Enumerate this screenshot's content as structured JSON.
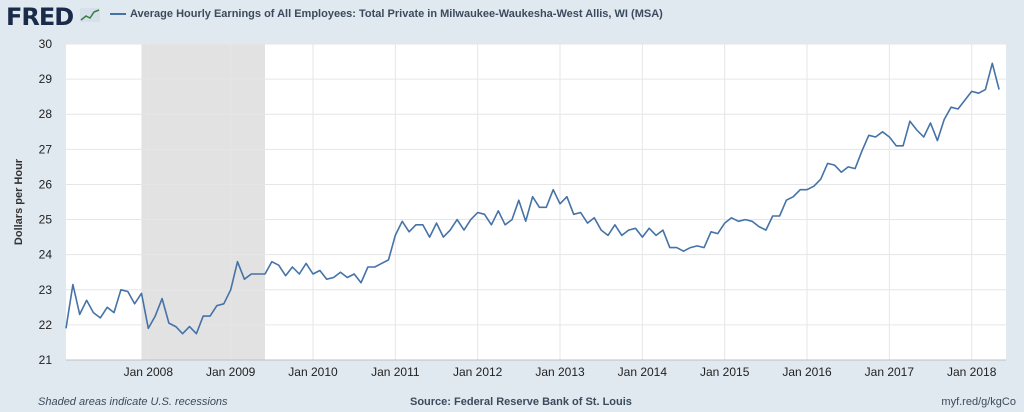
{
  "header": {
    "logo": "FRED",
    "legend": "Average Hourly Earnings of All Employees: Total Private in Milwaukee-Waukesha-West Allis, WI (MSA)"
  },
  "footer": {
    "recession_note": "Shaded areas indicate U.S. recessions",
    "source": "Source: Federal Reserve Bank of St. Louis",
    "url": "myf.red/g/kgCo"
  },
  "colors": {
    "line": "#4572a7",
    "recession": "#e2e2e2",
    "background": "#e1e9f0",
    "plot_bg": "#ffffff"
  },
  "chart_data": {
    "type": "line",
    "ylabel": "Dollars per Hour",
    "ylim": [
      21,
      30
    ],
    "yticks": [
      21,
      22,
      23,
      24,
      25,
      26,
      27,
      28,
      29,
      30
    ],
    "xlim": [
      "2007-01",
      "2018-06"
    ],
    "xticks": [
      "Jan 2008",
      "Jan 2009",
      "Jan 2010",
      "Jan 2011",
      "Jan 2012",
      "Jan 2013",
      "Jan 2014",
      "Jan 2015",
      "Jan 2016",
      "Jan 2017",
      "Jan 2018"
    ],
    "grid": true,
    "recessions": [
      [
        "2007-12",
        "2009-06"
      ]
    ],
    "series": [
      {
        "name": "Average Hourly Earnings of All Employees: Total Private in Milwaukee-Waukesha-West Allis, WI (MSA)",
        "start": "2007-01",
        "values": [
          21.9,
          23.15,
          22.3,
          22.7,
          22.35,
          22.2,
          22.5,
          22.35,
          23.0,
          22.95,
          22.6,
          22.9,
          21.9,
          22.25,
          22.75,
          22.05,
          21.95,
          21.75,
          21.95,
          21.75,
          22.25,
          22.25,
          22.55,
          22.6,
          23.0,
          23.8,
          23.3,
          23.45,
          23.45,
          23.45,
          23.8,
          23.7,
          23.4,
          23.65,
          23.45,
          23.75,
          23.45,
          23.55,
          23.3,
          23.35,
          23.5,
          23.35,
          23.45,
          23.2,
          23.65,
          23.65,
          23.75,
          23.85,
          24.55,
          24.95,
          24.65,
          24.85,
          24.85,
          24.5,
          24.9,
          24.5,
          24.7,
          25.0,
          24.7,
          25.0,
          25.2,
          25.15,
          24.85,
          25.25,
          24.85,
          25.0,
          25.55,
          24.95,
          25.65,
          25.35,
          25.35,
          25.85,
          25.45,
          25.65,
          25.15,
          25.2,
          24.9,
          25.05,
          24.7,
          24.55,
          24.85,
          24.55,
          24.7,
          24.75,
          24.5,
          24.75,
          24.55,
          24.7,
          24.2,
          24.2,
          24.1,
          24.2,
          24.25,
          24.2,
          24.65,
          24.6,
          24.9,
          25.05,
          24.95,
          25.0,
          24.95,
          24.8,
          24.7,
          25.1,
          25.1,
          25.55,
          25.65,
          25.85,
          25.85,
          25.95,
          26.15,
          26.6,
          26.55,
          26.35,
          26.5,
          26.45,
          26.95,
          27.4,
          27.35,
          27.5,
          27.35,
          27.1,
          27.1,
          27.8,
          27.55,
          27.35,
          27.75,
          27.25,
          27.85,
          28.2,
          28.15,
          28.4,
          28.65,
          28.6,
          28.7,
          29.45,
          28.7
        ]
      }
    ]
  }
}
